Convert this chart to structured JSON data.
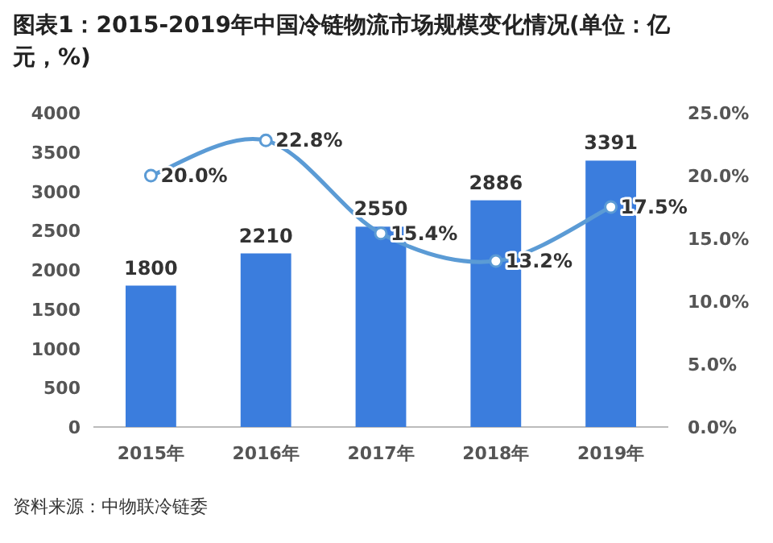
{
  "chart_data": {
    "type": "bar",
    "title": "图表1：2015-2019年中国冷链物流市场规模变化情况(单位：亿元，%)",
    "categories": [
      "2015年",
      "2016年",
      "2017年",
      "2018年",
      "2019年"
    ],
    "series": [
      {
        "color": "#3b7ddd",
        "values": [
          1800,
          2210,
          2550,
          2886,
          3391
        ],
        "value_labels": [
          "1800",
          "2210",
          "2550",
          "2886",
          "3391"
        ]
      },
      {
        "type": "line",
        "axis": "y2",
        "color": "#5b9bd5",
        "values": [
          20.0,
          22.8,
          15.4,
          13.2,
          17.5
        ],
        "value_labels": [
          "20.0%",
          "22.8%",
          "15.4%",
          "13.2%",
          "17.5%"
        ]
      }
    ],
    "ylim": [
      0,
      4000
    ],
    "yticks": [
      0,
      500,
      1000,
      1500,
      2000,
      2500,
      3000,
      3500,
      4000
    ],
    "y2lim": [
      0,
      25
    ],
    "y2ticks": [
      {
        "value": 0,
        "label": "0.0%"
      },
      {
        "value": 5,
        "label": "5.0%"
      },
      {
        "value": 10,
        "label": "10.0%"
      },
      {
        "value": 15,
        "label": "15.0%"
      },
      {
        "value": 20,
        "label": "20.0%"
      },
      {
        "value": 25,
        "label": "25.0%"
      }
    ],
    "marker": "circle",
    "grid": false,
    "annotations": [
      "资料来源：中物联冷链委"
    ]
  }
}
